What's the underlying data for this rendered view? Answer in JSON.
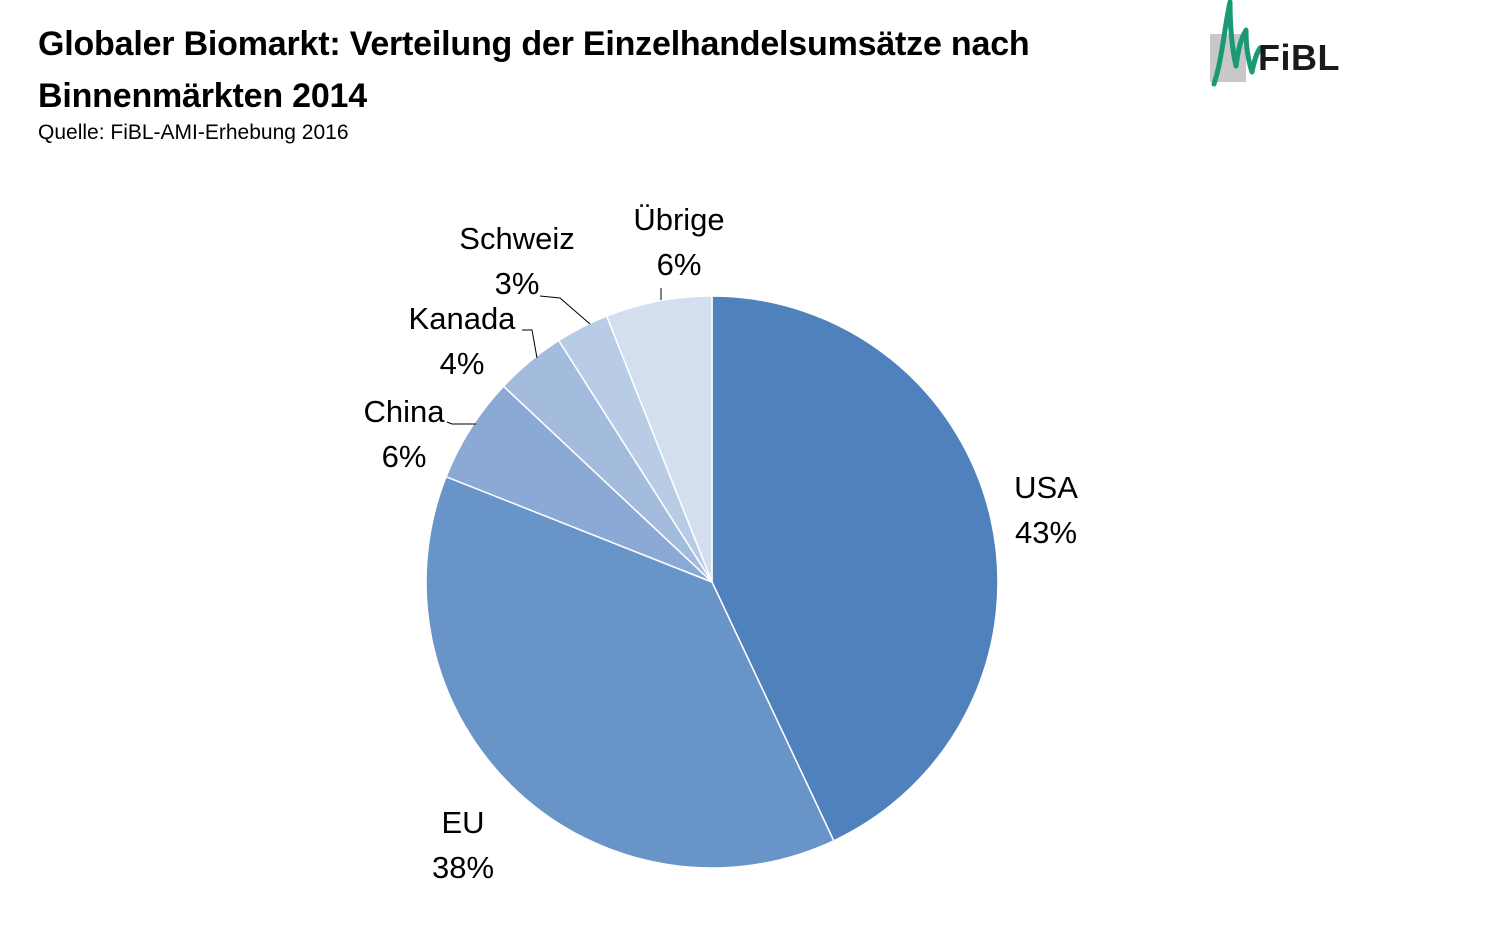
{
  "header": {
    "title": "Globaler Biomarkt: Verteilung der Einzelhandelsumsätze nach Binnenmärkten 2014",
    "source": "Quelle: FiBL-AMI-Erhebung 2016"
  },
  "logo": {
    "text": "FiBL",
    "accent_color": "#1a9a74",
    "shadow_color": "#c8c8c8"
  },
  "chart_data": {
    "type": "pie",
    "categories": [
      "USA",
      "EU",
      "China",
      "Kanada",
      "Schweiz",
      "Übrige"
    ],
    "values": [
      43,
      38,
      6,
      4,
      3,
      6
    ],
    "data_labels": [
      "43%",
      "38%",
      "6%",
      "4%",
      "3%",
      "6%"
    ],
    "title": "",
    "legend": "none",
    "start_angle_deg": 0,
    "direction": "clockwise",
    "colors": [
      "#4f81bd",
      "#6994c8",
      "#8aa9d4",
      "#a3bcdd",
      "#b9cce6",
      "#d3dfef"
    ]
  }
}
